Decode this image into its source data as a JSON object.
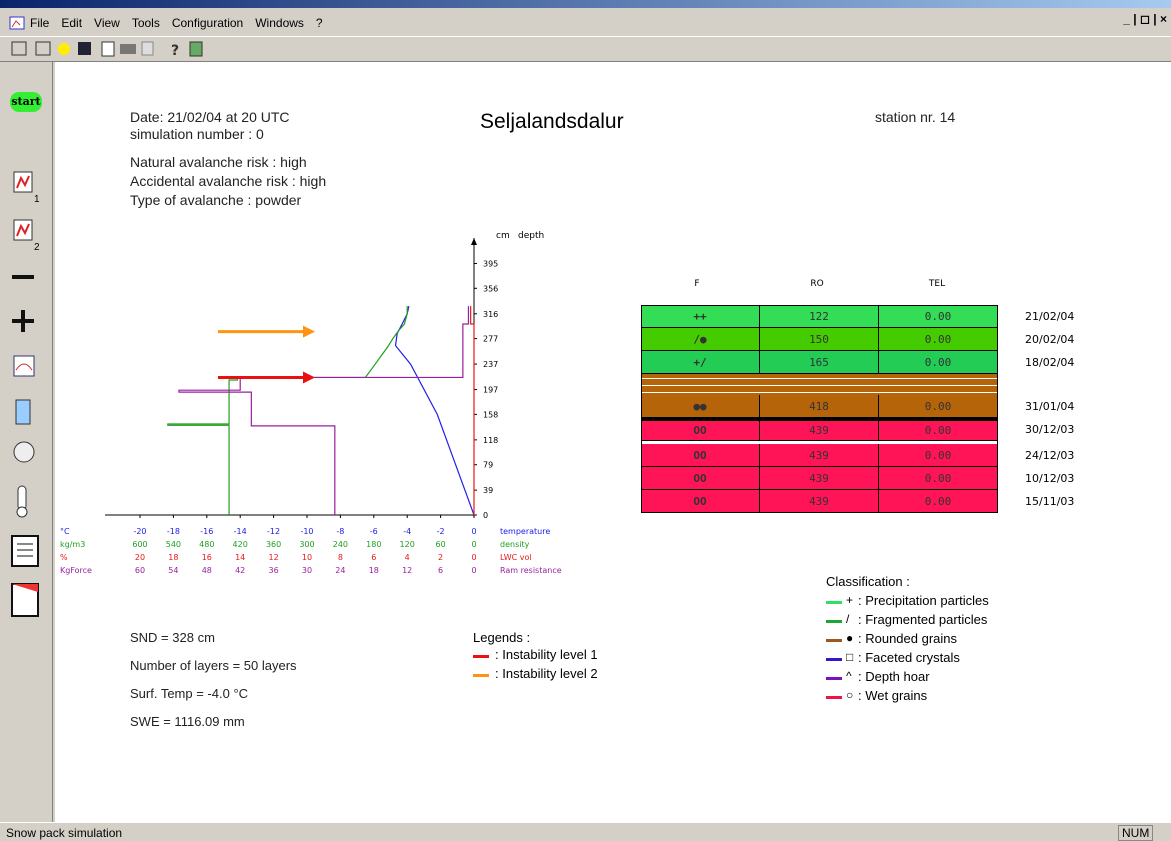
{
  "menu": [
    "File",
    "Edit",
    "View",
    "Tools",
    "Configuration",
    "Windows",
    "?"
  ],
  "sidebar": {
    "start": "start",
    "icon_labels": [
      "1",
      "2"
    ]
  },
  "header": {
    "date": "Date: 21/02/04 at 20 UTC",
    "simulation": "simulation number : 0",
    "natural_risk": "Natural avalanche risk : high",
    "accidental_risk": "Accidental avalanche risk : high",
    "avalanche_type": "Type of avalanche :  powder",
    "title": "Seljalandsdalur",
    "station": "station nr. 14"
  },
  "profile": {
    "depth_unit": "cm",
    "depth_title": "depth",
    "depth_lim": [
      0,
      435
    ],
    "depth_ticks": [
      0,
      39,
      79,
      118,
      158,
      197,
      237,
      277,
      316,
      356,
      395
    ],
    "rows": [
      {
        "unit": "°C",
        "name": "temperature",
        "color": "#2020e8",
        "lim": [
          -20,
          0
        ],
        "ticks": [
          -20,
          -18,
          -16,
          -14,
          -12,
          -10,
          -8,
          -6,
          -4,
          -2,
          0
        ],
        "profile": {
          "depth": [
            0,
            79,
            158,
            237,
            266,
            285,
            300,
            316,
            328
          ],
          "values": [
            0,
            -1.1,
            -2.2,
            -3.8,
            -4.7,
            -4.6,
            -4.3,
            -4.0,
            -3.9
          ]
        }
      },
      {
        "unit": "kg/m3",
        "name": "density",
        "color": "#1e9e1e",
        "lim": [
          600,
          0
        ],
        "ticks": [
          600,
          540,
          480,
          420,
          360,
          300,
          240,
          180,
          120,
          60,
          0
        ],
        "profile": {
          "depth": [
            0,
            141,
            141,
            143,
            143,
            212,
            212,
            216,
            216,
            228,
            240,
            252,
            264,
            278,
            290,
            300,
            316,
            328
          ],
          "values": [
            440,
            440,
            550,
            550,
            440,
            440,
            425,
            425,
            195,
            185,
            175,
            165,
            155,
            145,
            135,
            125,
            120,
            120
          ]
        }
      },
      {
        "unit": "%",
        "name": "LWC vol",
        "color": "#e81818",
        "lim": [
          20,
          0
        ],
        "ticks": [
          20,
          18,
          16,
          14,
          12,
          10,
          8,
          6,
          4,
          2,
          0
        ],
        "profile": {
          "depth": [
            0,
            300,
            300,
            328
          ],
          "values": [
            0,
            0,
            0.2,
            0.2
          ]
        }
      },
      {
        "unit": "KgForce",
        "name": "Ram resistance",
        "color": "#9a1ea0",
        "lim": [
          60,
          0
        ],
        "ticks": [
          60,
          54,
          48,
          42,
          36,
          30,
          24,
          18,
          12,
          6,
          0
        ],
        "profile": {
          "depth": [
            0,
            140,
            140,
            193,
            193,
            196,
            196,
            216,
            216,
            300,
            300,
            328
          ],
          "values": [
            25,
            25,
            40,
            40,
            53,
            53,
            42,
            42,
            2,
            2,
            1,
            1
          ]
        }
      }
    ],
    "arrows": [
      {
        "color": "#ff9410",
        "depth": 288
      },
      {
        "color": "#e81010",
        "depth": 216
      }
    ]
  },
  "stats": [
    "SND = 328 cm",
    "Number of layers = 50 layers",
    "Surf. Temp = -4.0 °C",
    "SWE = 1116.09 mm"
  ],
  "legend": {
    "title": "Legends :",
    "entries": [
      {
        "label": ": Instability level 1",
        "color": "#e81010"
      },
      {
        "label": ": Instability level 2",
        "color": "#ff9410"
      }
    ]
  },
  "table": {
    "columns": [
      "F",
      "RO",
      "TEL"
    ],
    "rows": [
      {
        "cells": [
          "++",
          122,
          "0.00"
        ],
        "date": "21/02/04",
        "color": "#33dd55"
      },
      {
        "cells": [
          "/●",
          150,
          "0.00"
        ],
        "date": "20/02/04",
        "color": "#44cc00"
      },
      {
        "cells": [
          "+/",
          165,
          "0.00"
        ],
        "date": "18/02/04",
        "color": "#22cc55"
      },
      {
        "cells": [
          "●●",
          418,
          "0.00"
        ],
        "date": "31/01/04",
        "color": "#b6640a"
      },
      {
        "cells": [
          "OO",
          439,
          "0.00"
        ],
        "date": "30/12/03",
        "color": "#ff1458"
      },
      {
        "cells": [
          "OO",
          439,
          "0.00"
        ],
        "date": "24/12/03",
        "color": "#ff1458"
      },
      {
        "cells": [
          "OO",
          439,
          "0.00"
        ],
        "date": "10/12/03",
        "color": "#ff1458"
      },
      {
        "cells": [
          "OO",
          439,
          "0.00"
        ],
        "date": "15/11/03",
        "color": "#ff1458"
      }
    ]
  },
  "classification": {
    "title": "Classification :",
    "entries": [
      {
        "symbol": "+",
        "label": ": Precipitation particles",
        "color": "#33dd66"
      },
      {
        "symbol": "/",
        "label": ": Fragmented particles",
        "color": "#1ea632"
      },
      {
        "symbol": "●",
        "label": ": Rounded grains",
        "color": "#a0561e"
      },
      {
        "symbol": "□",
        "label": ": Faceted crystals",
        "color": "#3a14cc"
      },
      {
        "symbol": "^",
        "label": ": Depth hoar",
        "color": "#7a14b8"
      },
      {
        "symbol": "○",
        "label": ": Wet grains",
        "color": "#ee1448"
      }
    ]
  },
  "status": {
    "text": "Snow pack simulation",
    "num": "NUM"
  }
}
